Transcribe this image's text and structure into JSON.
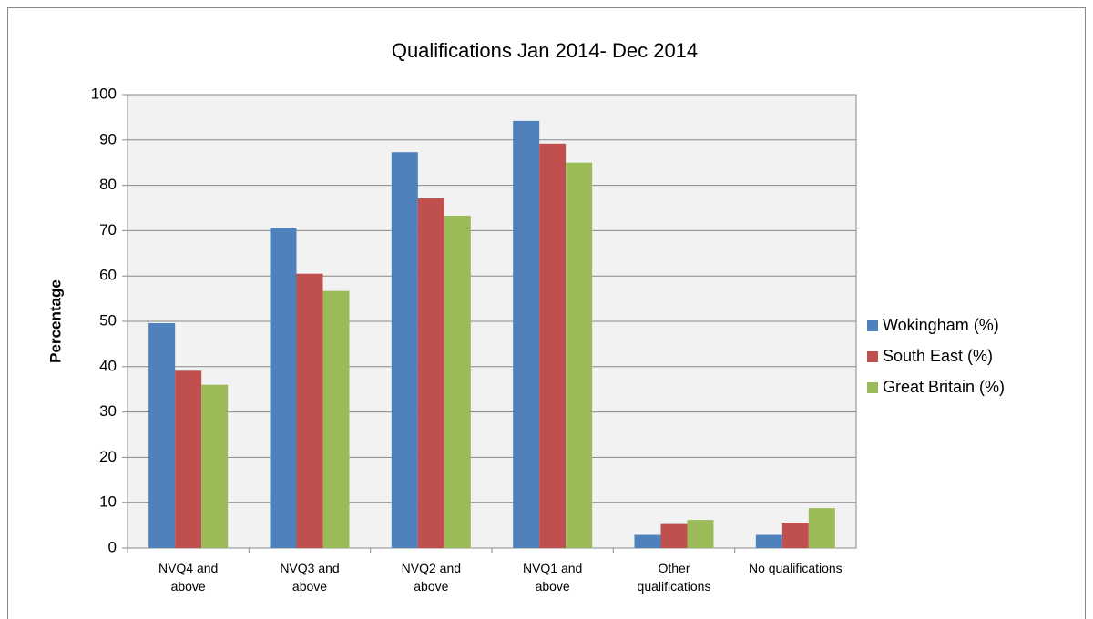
{
  "chart_data": {
    "type": "bar",
    "title": "Qualifications Jan 2014- Dec 2014",
    "y_label": "Percentage",
    "categories": [
      "NVQ4 and above",
      "NVQ3 and above",
      "NVQ2 and above",
      "NVQ1 and above",
      "Other qualifications",
      "No qualifications"
    ],
    "series": [
      {
        "name": "Wokingham (%)",
        "color": "#4f81bd",
        "values": [
          49.6,
          70.6,
          87.3,
          94.2,
          2.9,
          2.9
        ]
      },
      {
        "name": "South East (%)",
        "color": "#c0504d",
        "values": [
          39.1,
          60.5,
          77.1,
          89.2,
          5.3,
          5.6
        ]
      },
      {
        "name": "Great Britain (%)",
        "color": "#9bbb59",
        "values": [
          36.0,
          56.7,
          73.3,
          85.0,
          6.2,
          8.8
        ]
      }
    ],
    "ylim": [
      0,
      100
    ],
    "yticks": [
      0,
      10,
      20,
      30,
      40,
      50,
      60,
      70,
      80,
      90,
      100
    ],
    "grid": true,
    "legend": "right"
  }
}
